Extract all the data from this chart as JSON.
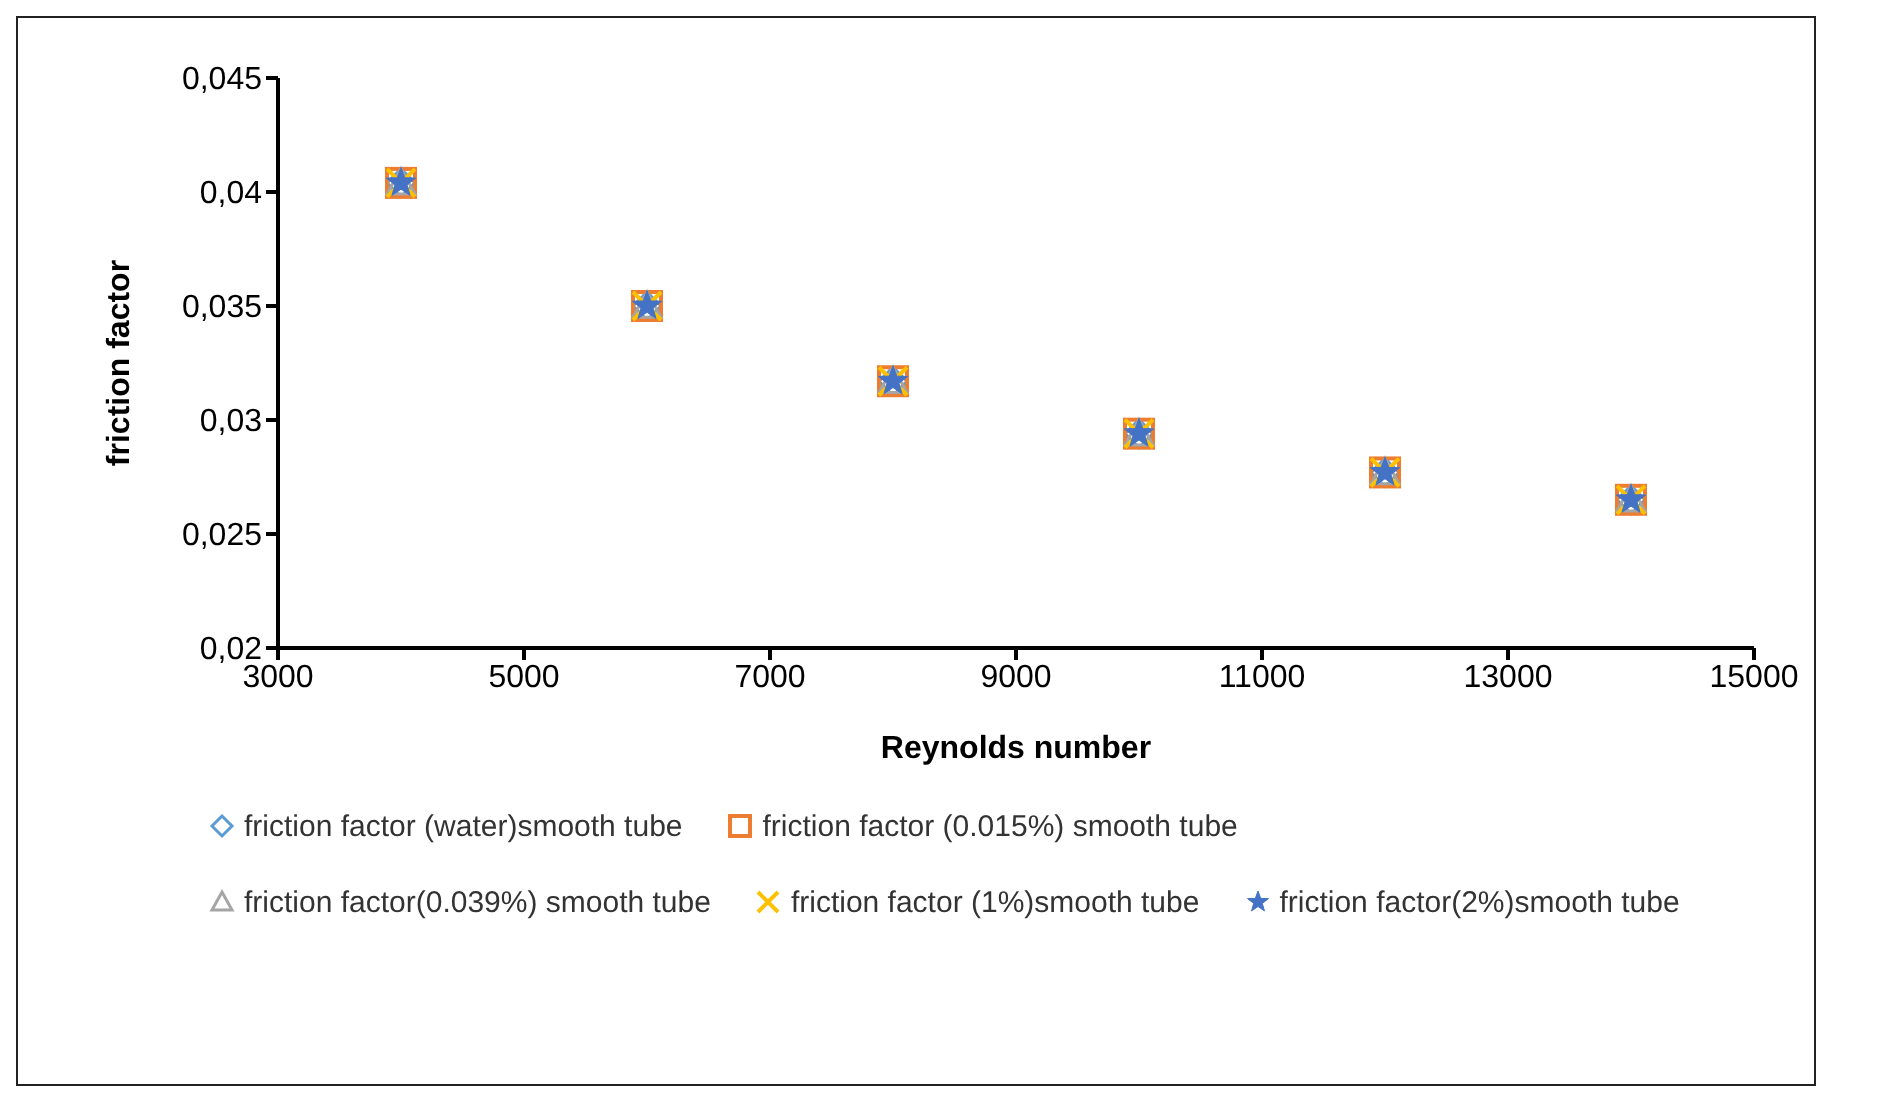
{
  "chart_data": {
    "type": "scatter",
    "xlabel": "Reynolds number",
    "ylabel": "friction factor",
    "x": [
      4000,
      6000,
      8000,
      10000,
      12000,
      14000
    ],
    "series": [
      {
        "name": "friction factor (water)smooth tube",
        "color": "#5b9bd5",
        "marker": "diamond",
        "values": [
          0.0404,
          0.035,
          0.0317,
          0.0294,
          0.0277,
          0.0265
        ]
      },
      {
        "name": "friction factor (0.015%) smooth tube",
        "color": "#ed7d31",
        "marker": "square",
        "values": [
          0.0404,
          0.035,
          0.0317,
          0.0294,
          0.0277,
          0.0265
        ]
      },
      {
        "name": "friction factor(0.039%) smooth tube",
        "color": "#a5a5a5",
        "marker": "triangle",
        "values": [
          0.0404,
          0.035,
          0.0317,
          0.0294,
          0.0277,
          0.0265
        ]
      },
      {
        "name": "friction factor (1%)smooth tube",
        "color": "#ffc000",
        "marker": "cross",
        "values": [
          0.0404,
          0.035,
          0.0317,
          0.0294,
          0.0277,
          0.0265
        ]
      },
      {
        "name": "friction factor(2%)smooth tube",
        "color": "#4472c4",
        "marker": "star",
        "values": [
          0.0404,
          0.035,
          0.0317,
          0.0294,
          0.0277,
          0.0265
        ]
      }
    ],
    "xlim": [
      3000,
      15000
    ],
    "xticks": [
      3000,
      5000,
      7000,
      9000,
      11000,
      13000,
      15000
    ],
    "ylim": [
      0.02,
      0.045
    ],
    "yticks": [
      {
        "value": 0.02,
        "label": "0,02"
      },
      {
        "value": 0.025,
        "label": "0,025"
      },
      {
        "value": 0.03,
        "label": "0,03"
      },
      {
        "value": 0.035,
        "label": "0,035"
      },
      {
        "value": 0.04,
        "label": "0,04"
      },
      {
        "value": 0.045,
        "label": "0,045"
      }
    ],
    "grid": false,
    "legend": "bottom"
  }
}
